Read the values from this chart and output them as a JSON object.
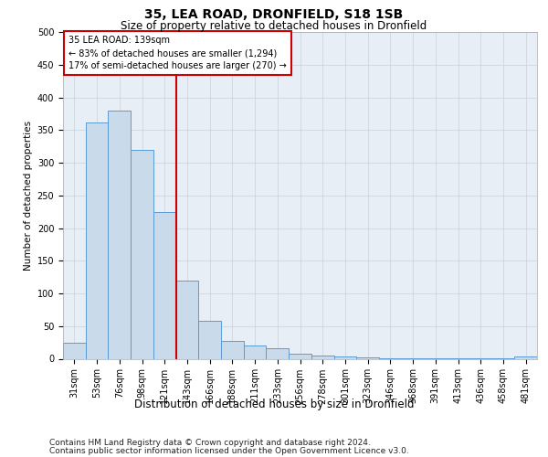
{
  "title1": "35, LEA ROAD, DRONFIELD, S18 1SB",
  "title2": "Size of property relative to detached houses in Dronfield",
  "xlabel": "Distribution of detached houses by size in Dronfield",
  "ylabel": "Number of detached properties",
  "categories": [
    "31sqm",
    "53sqm",
    "76sqm",
    "98sqm",
    "121sqm",
    "143sqm",
    "166sqm",
    "188sqm",
    "211sqm",
    "233sqm",
    "256sqm",
    "278sqm",
    "301sqm",
    "323sqm",
    "346sqm",
    "368sqm",
    "391sqm",
    "413sqm",
    "436sqm",
    "458sqm",
    "481sqm"
  ],
  "values": [
    25,
    362,
    380,
    320,
    225,
    120,
    58,
    27,
    20,
    16,
    8,
    5,
    3,
    2,
    1,
    1,
    1,
    1,
    1,
    1,
    4
  ],
  "bar_color": "#c9daea",
  "bar_edge_color": "#5b9bd5",
  "grid_color": "#c8d0dc",
  "vline_x_pos": 4.5,
  "vline_color": "#cc0000",
  "annotation_text": "35 LEA ROAD: 139sqm\n← 83% of detached houses are smaller (1,294)\n17% of semi-detached houses are larger (270) →",
  "annotation_box_edge_color": "#cc0000",
  "annotation_box_fill": "#ffffff",
  "footnote1": "Contains HM Land Registry data © Crown copyright and database right 2024.",
  "footnote2": "Contains public sector information licensed under the Open Government Licence v3.0.",
  "ylim_min": 0,
  "ylim_max": 500,
  "yticks": [
    0,
    50,
    100,
    150,
    200,
    250,
    300,
    350,
    400,
    450,
    500
  ],
  "plot_bg_color": "#e8eef5",
  "fig_bg_color": "#ffffff",
  "title1_fontsize": 10,
  "title2_fontsize": 8.5,
  "xlabel_fontsize": 8.5,
  "ylabel_fontsize": 7.5,
  "tick_fontsize": 7,
  "annot_fontsize": 7,
  "footnote_fontsize": 6.5
}
